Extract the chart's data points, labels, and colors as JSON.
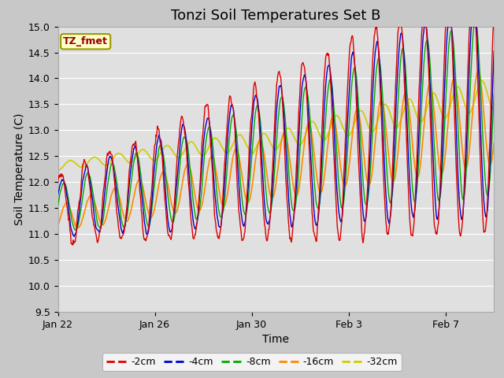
{
  "title": "Tonzi Soil Temperatures Set B",
  "xlabel": "Time",
  "ylabel": "Soil Temperature (C)",
  "ylim": [
    9.5,
    15.0
  ],
  "yticks": [
    9.5,
    10.0,
    10.5,
    11.0,
    11.5,
    12.0,
    12.5,
    13.0,
    13.5,
    14.0,
    14.5,
    15.0
  ],
  "xtick_labels": [
    "Jan 22",
    "Jan 26",
    "Jan 30",
    "Feb 3",
    "Feb 7"
  ],
  "xtick_days": [
    0,
    4,
    8,
    12,
    16
  ],
  "colors": {
    "-2cm": "#dd0000",
    "-4cm": "#0000cc",
    "-8cm": "#00aa00",
    "-16cm": "#ff8800",
    "-32cm": "#cccc00"
  },
  "legend_label": "TZ_fmet",
  "legend_bg": "#ffffcc",
  "legend_border": "#999900",
  "title_fontsize": 13,
  "axis_fontsize": 10,
  "tick_fontsize": 9,
  "total_days": 18,
  "start_temp": 11.5,
  "end_temp": 13.5
}
